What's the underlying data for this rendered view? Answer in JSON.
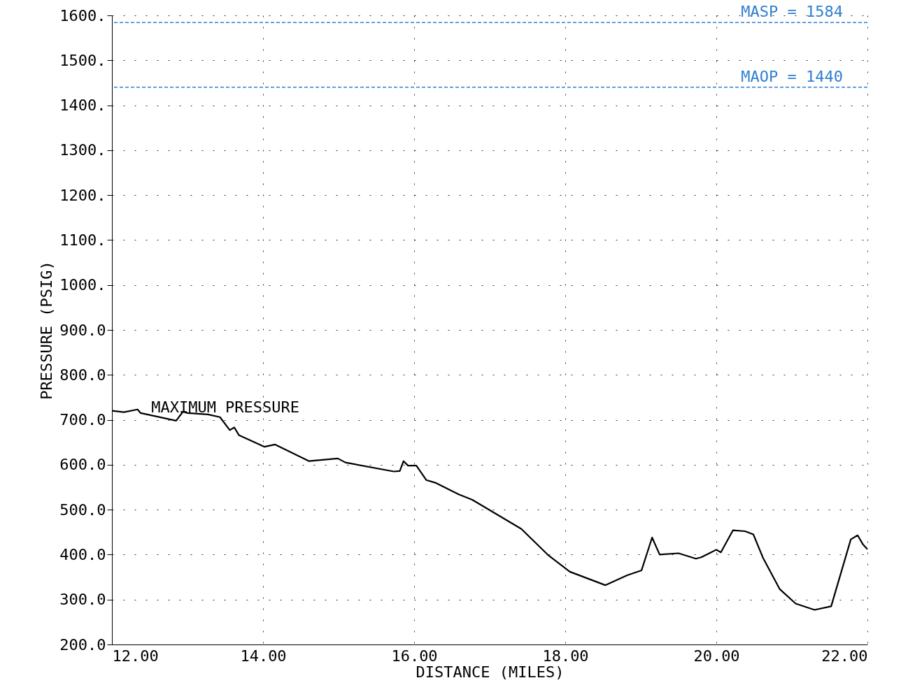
{
  "chart_data": {
    "type": "line",
    "xlabel": "DISTANCE (MILES)",
    "ylabel": "PRESSURE (PSIG)",
    "x": [
      12.0,
      12.16,
      12.34,
      12.38,
      12.85,
      12.94,
      13.0,
      13.27,
      13.43,
      13.56,
      13.62,
      13.68,
      14.02,
      14.16,
      14.61,
      14.99,
      15.09,
      15.73,
      15.81,
      15.86,
      15.92,
      16.03,
      16.16,
      16.28,
      16.59,
      16.77,
      17.42,
      17.78,
      18.06,
      18.53,
      18.82,
      19.01,
      19.15,
      19.25,
      19.5,
      19.73,
      19.8,
      20.0,
      20.06,
      20.22,
      20.38,
      20.49,
      20.62,
      20.84,
      21.05,
      21.3,
      21.52,
      21.78,
      21.87,
      21.94,
      22.0
    ],
    "series": [
      {
        "color": "#000000",
        "values": [
          720,
          717,
          723,
          715,
          698,
          718,
          715,
          712,
          706,
          677,
          683,
          666,
          640,
          645,
          608,
          614,
          605,
          585,
          586,
          608,
          598,
          598,
          566,
          560,
          534,
          522,
          457,
          398,
          362,
          332,
          354,
          365,
          438,
          400,
          403,
          391,
          394,
          411,
          405,
          454,
          452,
          445,
          392,
          323,
          291,
          277,
          285,
          434,
          443,
          423,
          412
        ]
      }
    ],
    "xlim": [
      12,
      22
    ],
    "ylim": [
      200,
      1600
    ],
    "xticks": [
      {
        "value": 12,
        "label": "12.00"
      },
      {
        "value": 14,
        "label": "14.00"
      },
      {
        "value": 16,
        "label": "16.00"
      },
      {
        "value": 18,
        "label": "18.00"
      },
      {
        "value": 20,
        "label": "20.00"
      },
      {
        "value": 22,
        "label": "22.00"
      }
    ],
    "yticks": [
      {
        "value": 200,
        "label": "200.0"
      },
      {
        "value": 300,
        "label": "300.0"
      },
      {
        "value": 400,
        "label": "400.0"
      },
      {
        "value": 500,
        "label": "500.0"
      },
      {
        "value": 600,
        "label": "600.0"
      },
      {
        "value": 700,
        "label": "700.0"
      },
      {
        "value": 800,
        "label": "800.0"
      },
      {
        "value": 900,
        "label": "900.0"
      },
      {
        "value": 1000,
        "label": "1000."
      },
      {
        "value": 1100,
        "label": "1100."
      },
      {
        "value": 1200,
        "label": "1200."
      },
      {
        "value": 1300,
        "label": "1300."
      },
      {
        "value": 1400,
        "label": "1400."
      },
      {
        "value": 1500,
        "label": "1500."
      },
      {
        "value": 1600,
        "label": "1600."
      }
    ],
    "ref_lines": [
      {
        "axis": "y",
        "value": 1584,
        "label": "MASP = 1584",
        "color": "#2f7fd0",
        "line_style": "dashed"
      },
      {
        "axis": "y",
        "value": 1440,
        "label": "MAOP = 1440",
        "color": "#2f7fd0",
        "line_style": "dashed"
      }
    ],
    "annotations": [
      {
        "text": "MAXIMUM PRESSURE",
        "x": 12.52,
        "y": 712
      }
    ],
    "grid": true,
    "marker": "none",
    "line_style": "solid"
  }
}
